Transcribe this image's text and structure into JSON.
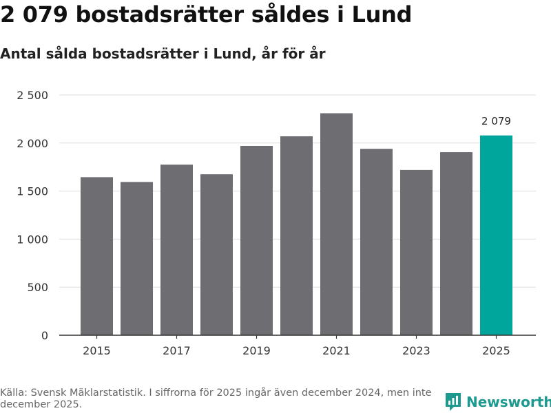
{
  "title": "2 079 bostadsrätter såldes i Lund",
  "subtitle": "Antal sålda bostadsrätter i Lund, år för år",
  "source": "Källa: Svensk Mäklarstatistik. I siffrorna för 2025 ingår även december 2024, men inte december 2025.",
  "brand": {
    "name": "Newsworthy",
    "icon": "newsworthy-logo-icon"
  },
  "colors": {
    "bar": "#6e6d71",
    "highlight": "#00a69c",
    "grid": "#dddddd",
    "axis": "#333333",
    "text": "#333333"
  },
  "chart_data": {
    "type": "bar",
    "categories": [
      "2015",
      "2016",
      "2017",
      "2018",
      "2019",
      "2020",
      "2021",
      "2022",
      "2023",
      "2024",
      "2025"
    ],
    "values": [
      1645,
      1595,
      1775,
      1675,
      1970,
      2070,
      2310,
      1940,
      1720,
      1905,
      2079
    ],
    "highlight_index": 10,
    "data_labels": [
      {
        "index": 10,
        "text": "2 079"
      }
    ],
    "x_tick_labels": [
      "2015",
      "2017",
      "2019",
      "2021",
      "2023",
      "2025"
    ],
    "y_ticks": [
      0,
      500,
      1000,
      1500,
      2000,
      2500
    ],
    "y_tick_labels": [
      "0",
      "500",
      "1 000",
      "1 500",
      "2 000",
      "2 500"
    ],
    "ylim": [
      0,
      2500
    ],
    "grid": true,
    "xlabel": "",
    "ylabel": ""
  }
}
